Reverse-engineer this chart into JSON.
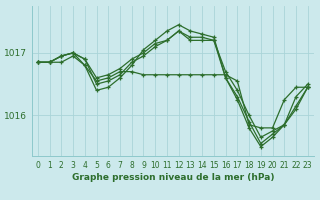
{
  "title": "Graphe pression niveau de la mer (hPa)",
  "bg_color": "#cce9ec",
  "grid_color": "#aad4d8",
  "line_color": "#2d6e2d",
  "marker": "+",
  "xlim": [
    -0.5,
    23.5
  ],
  "ylim": [
    1015.35,
    1017.75
  ],
  "yticks": [
    1016.0,
    1017.0
  ],
  "xticks": [
    0,
    1,
    2,
    3,
    4,
    5,
    6,
    7,
    8,
    9,
    10,
    11,
    12,
    13,
    14,
    15,
    16,
    17,
    18,
    19,
    20,
    21,
    22,
    23
  ],
  "series": [
    [
      1016.85,
      1016.85,
      1016.85,
      1016.95,
      1016.8,
      1016.55,
      1016.6,
      1016.7,
      1016.7,
      1016.65,
      1016.65,
      1016.65,
      1016.65,
      1016.65,
      1016.65,
      1016.65,
      1016.65,
      1016.55,
      1015.85,
      1015.8,
      1015.8,
      1016.25,
      1016.45,
      1016.45
    ],
    [
      1016.85,
      1016.85,
      1016.95,
      1017.0,
      1016.9,
      1016.6,
      1016.65,
      1016.75,
      1016.9,
      1017.0,
      1017.15,
      1017.2,
      1017.35,
      1017.25,
      1017.25,
      1017.2,
      1016.7,
      1016.4,
      1016.0,
      1015.65,
      1015.75,
      1015.85,
      1016.3,
      1016.5
    ],
    [
      1016.85,
      1016.85,
      1016.95,
      1017.0,
      1016.9,
      1016.5,
      1016.55,
      1016.65,
      1016.85,
      1016.95,
      1017.1,
      1017.2,
      1017.35,
      1017.2,
      1017.2,
      1017.2,
      1016.6,
      1016.3,
      1015.9,
      1015.55,
      1015.7,
      1015.85,
      1016.15,
      1016.45
    ],
    [
      1016.85,
      1016.85,
      1016.95,
      1017.0,
      1016.8,
      1016.4,
      1016.45,
      1016.6,
      1016.8,
      1017.05,
      1017.2,
      1017.35,
      1017.45,
      1017.35,
      1017.3,
      1017.25,
      1016.6,
      1016.25,
      1015.8,
      1015.5,
      1015.65,
      1015.85,
      1016.1,
      1016.45
    ]
  ]
}
